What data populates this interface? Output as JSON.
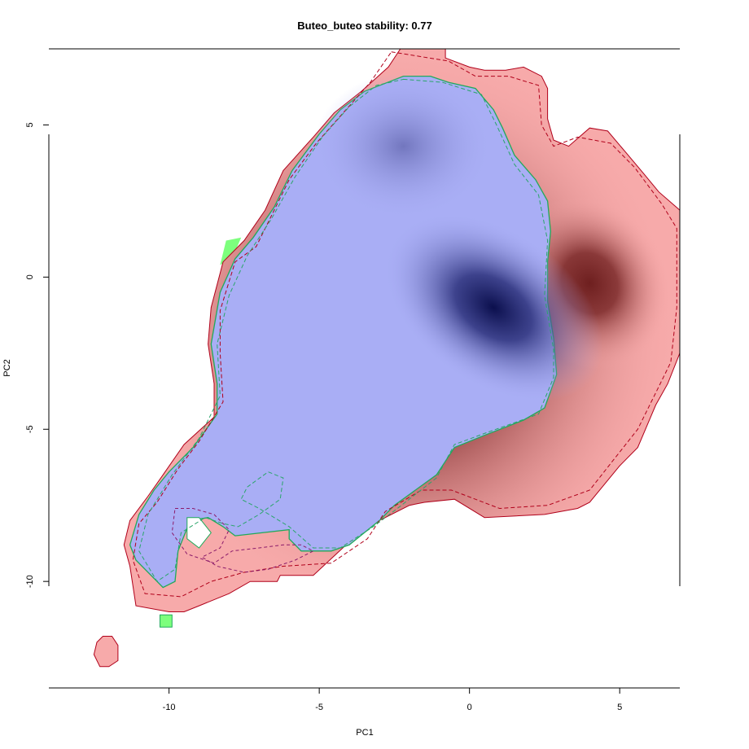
{
  "chart_data": {
    "type": "heatmap",
    "title": "Buteo_buteo stability: 0.77",
    "xlabel": "PC1",
    "ylabel": "PC2",
    "xlim": [
      -14,
      7
    ],
    "ylim": [
      -13.5,
      7.5
    ],
    "x_ticks": [
      {
        "value": -10,
        "label": "-10"
      },
      {
        "value": -5,
        "label": "-5"
      },
      {
        "value": 0,
        "label": "0"
      },
      {
        "value": 5,
        "label": "5"
      }
    ],
    "y_ticks": [
      {
        "value": -10,
        "label": "-10"
      },
      {
        "value": -5,
        "label": "-5"
      },
      {
        "value": 0,
        "label": "0"
      },
      {
        "value": 5,
        "label": "5"
      }
    ],
    "colors": {
      "red_fill": "#f7aaaa",
      "red_peak": "#6e1f1f",
      "blue_fill": "#a9aef5",
      "blue_peak": "#0b0f4d",
      "green_fill": "#7dff7d",
      "red_line": "#b0001a",
      "green_line": "#1faa5a",
      "purple_dash": "#8b1a6a",
      "green_dash": "#2aa56a"
    },
    "density_peaks": {
      "red": {
        "x": 4.0,
        "y": -0.2
      },
      "blue": [
        {
          "x": 0.8,
          "y": -1.0
        },
        {
          "x": -2.2,
          "y": 4.3
        }
      ]
    },
    "regions": {
      "red_outer": [
        [
          -2.3,
          7.5
        ],
        [
          -0.8,
          7.5
        ],
        [
          -0.8,
          7.2
        ],
        [
          0,
          6.9
        ],
        [
          0.5,
          6.8
        ],
        [
          1.2,
          6.8
        ],
        [
          1.8,
          6.9
        ],
        [
          2.4,
          6.6
        ],
        [
          2.6,
          6.2
        ],
        [
          2.6,
          5.2
        ],
        [
          2.8,
          4.5
        ],
        [
          3.3,
          4.3
        ],
        [
          4.0,
          4.9
        ],
        [
          4.6,
          4.8
        ],
        [
          5.2,
          4.1
        ],
        [
          5.8,
          3.4
        ],
        [
          6.3,
          2.8
        ],
        [
          7,
          2.2
        ],
        [
          7,
          -2.5
        ],
        [
          6.6,
          -3.5
        ],
        [
          6.2,
          -4.2
        ],
        [
          5.6,
          -5.6
        ],
        [
          5.0,
          -6.2
        ],
        [
          4.0,
          -7.4
        ],
        [
          3.6,
          -7.6
        ],
        [
          2.5,
          -7.8
        ],
        [
          0.5,
          -7.9
        ],
        [
          -0.5,
          -7.3
        ],
        [
          -1.5,
          -7.4
        ],
        [
          -2.0,
          -7.5
        ],
        [
          -3.2,
          -8.1
        ],
        [
          -4.0,
          -8.7
        ],
        [
          -5.2,
          -9.8
        ],
        [
          -6.3,
          -9.8
        ],
        [
          -6.4,
          -10.0
        ],
        [
          -7.3,
          -10.0
        ],
        [
          -8.0,
          -10.4
        ],
        [
          -9.0,
          -10.8
        ],
        [
          -9.5,
          -11.0
        ],
        [
          -10.0,
          -11.0
        ],
        [
          -11.1,
          -10.8
        ],
        [
          -11.3,
          -9.5
        ],
        [
          -11.5,
          -8.8
        ],
        [
          -11.3,
          -8.0
        ],
        [
          -10.7,
          -7.2
        ],
        [
          -10.2,
          -6.5
        ],
        [
          -9.5,
          -5.5
        ],
        [
          -8.5,
          -4.6
        ],
        [
          -8.5,
          -3.5
        ],
        [
          -8.7,
          -2.2
        ],
        [
          -8.6,
          -1.0
        ],
        [
          -8.2,
          0.5
        ],
        [
          -7.5,
          1.2
        ],
        [
          -6.8,
          2.2
        ],
        [
          -6.2,
          3.5
        ],
        [
          -5.2,
          4.6
        ],
        [
          -4.5,
          5.4
        ],
        [
          -3.6,
          6.1
        ],
        [
          -2.7,
          6.9
        ]
      ],
      "blue_outer": [
        [
          -2.2,
          6.6
        ],
        [
          -1.3,
          6.6
        ],
        [
          -0.7,
          6.4
        ],
        [
          0.2,
          6.2
        ],
        [
          0.8,
          5.5
        ],
        [
          1.1,
          4.9
        ],
        [
          1.5,
          4.0
        ],
        [
          2.2,
          3.2
        ],
        [
          2.6,
          2.5
        ],
        [
          2.7,
          1.5
        ],
        [
          2.6,
          0.5
        ],
        [
          2.6,
          -0.8
        ],
        [
          2.8,
          -2.0
        ],
        [
          2.9,
          -3.2
        ],
        [
          2.5,
          -4.3
        ],
        [
          1.8,
          -4.7
        ],
        [
          0.5,
          -5.2
        ],
        [
          -0.5,
          -5.6
        ],
        [
          -1.1,
          -6.5
        ],
        [
          -2.5,
          -7.5
        ],
        [
          -3.0,
          -8.0
        ],
        [
          -4.0,
          -8.8
        ],
        [
          -4.6,
          -9.0
        ],
        [
          -5.6,
          -9.0
        ],
        [
          -6.0,
          -8.6
        ],
        [
          -6.0,
          -8.3
        ],
        [
          -7.8,
          -8.5
        ],
        [
          -8.2,
          -8.2
        ],
        [
          -8.7,
          -7.9
        ],
        [
          -9.3,
          -8.0
        ],
        [
          -9.7,
          -9.0
        ],
        [
          -9.8,
          -10.0
        ],
        [
          -10.2,
          -10.2
        ],
        [
          -10.6,
          -9.8
        ],
        [
          -11.1,
          -9.3
        ],
        [
          -11.3,
          -8.8
        ],
        [
          -11.0,
          -7.8
        ],
        [
          -10.5,
          -7.0
        ],
        [
          -10.0,
          -6.4
        ],
        [
          -9.2,
          -5.6
        ],
        [
          -8.4,
          -4.5
        ],
        [
          -8.4,
          -3.5
        ],
        [
          -8.6,
          -2.2
        ],
        [
          -8.3,
          -0.5
        ],
        [
          -7.8,
          0.6
        ],
        [
          -7.2,
          1.3
        ],
        [
          -6.5,
          2.3
        ],
        [
          -5.9,
          3.5
        ],
        [
          -5.0,
          4.7
        ],
        [
          -4.3,
          5.5
        ],
        [
          -3.5,
          6.1
        ]
      ],
      "red_hole": [
        [
          -9.4,
          -7.9
        ],
        [
          -9.0,
          -7.9
        ],
        [
          -8.6,
          -8.4
        ],
        [
          -9.0,
          -8.9
        ],
        [
          -9.4,
          -8.6
        ]
      ],
      "red_blob": [
        [
          -12.2,
          -11.8
        ],
        [
          -11.9,
          -11.8
        ],
        [
          -11.7,
          -12.1
        ],
        [
          -11.7,
          -12.6
        ],
        [
          -12.0,
          -12.8
        ],
        [
          -12.3,
          -12.8
        ],
        [
          -12.5,
          -12.4
        ],
        [
          -12.4,
          -12.0
        ]
      ],
      "green_spot": [
        [
          -10.3,
          -11.1
        ],
        [
          -9.9,
          -11.1
        ],
        [
          -9.9,
          -11.5
        ],
        [
          -10.3,
          -11.5
        ]
      ],
      "green_left": [
        [
          -8.1,
          1.2
        ],
        [
          -7.6,
          1.3
        ],
        [
          -7.9,
          0.6
        ],
        [
          -8.3,
          0.4
        ]
      ]
    },
    "dashed_contours": {
      "red_dash": [
        [
          -2.6,
          7.4
        ],
        [
          -0.7,
          7.1
        ],
        [
          0.2,
          6.6
        ],
        [
          1.3,
          6.6
        ],
        [
          2.3,
          6.3
        ],
        [
          2.4,
          5.0
        ],
        [
          2.8,
          4.3
        ],
        [
          3.6,
          4.6
        ],
        [
          4.7,
          4.4
        ],
        [
          5.5,
          3.6
        ],
        [
          6.4,
          2.4
        ],
        [
          6.9,
          1.6
        ],
        [
          6.9,
          -1.0
        ],
        [
          6.7,
          -2.8
        ],
        [
          6.2,
          -3.8
        ],
        [
          5.6,
          -5.0
        ],
        [
          4.8,
          -6.0
        ],
        [
          4.0,
          -7.0
        ],
        [
          2.6,
          -7.5
        ],
        [
          1.0,
          -7.6
        ],
        [
          -0.6,
          -7.0
        ],
        [
          -1.6,
          -7.0
        ],
        [
          -2.8,
          -7.7
        ],
        [
          -3.4,
          -8.6
        ],
        [
          -4.6,
          -9.4
        ],
        [
          -6.2,
          -9.5
        ],
        [
          -7.5,
          -9.7
        ],
        [
          -8.6,
          -10.0
        ],
        [
          -9.6,
          -10.5
        ],
        [
          -10.8,
          -10.4
        ],
        [
          -11.2,
          -9.3
        ],
        [
          -11.0,
          -8.1
        ],
        [
          -10.4,
          -7.4
        ],
        [
          -9.7,
          -6.3
        ],
        [
          -9.0,
          -5.4
        ],
        [
          -8.2,
          -4.1
        ],
        [
          -8.3,
          -2.5
        ],
        [
          -8.3,
          -1.1
        ],
        [
          -7.8,
          0.5
        ],
        [
          -7.1,
          1.0
        ],
        [
          -6.6,
          2.0
        ],
        [
          -6.0,
          3.2
        ],
        [
          -5.1,
          4.4
        ],
        [
          -4.2,
          5.4
        ],
        [
          -3.3,
          6.4
        ]
      ],
      "green_dash": [
        [
          -2.2,
          6.5
        ],
        [
          -0.9,
          6.4
        ],
        [
          0.4,
          6.0
        ],
        [
          0.9,
          5.0
        ],
        [
          1.5,
          3.7
        ],
        [
          2.3,
          2.7
        ],
        [
          2.6,
          1.2
        ],
        [
          2.5,
          -0.6
        ],
        [
          2.8,
          -2.4
        ],
        [
          2.8,
          -3.3
        ],
        [
          2.3,
          -4.5
        ],
        [
          0.6,
          -5.1
        ],
        [
          -0.5,
          -5.5
        ],
        [
          -1.1,
          -6.6
        ],
        [
          -2.4,
          -7.6
        ],
        [
          -3.2,
          -8.2
        ],
        [
          -4.3,
          -8.9
        ],
        [
          -5.2,
          -8.9
        ],
        [
          -6.0,
          -8.2
        ],
        [
          -7.0,
          -7.6
        ],
        [
          -7.6,
          -7.3
        ],
        [
          -7.4,
          -6.9
        ],
        [
          -6.7,
          -6.4
        ],
        [
          -6.2,
          -6.6
        ],
        [
          -6.3,
          -7.3
        ],
        [
          -7.0,
          -7.8
        ],
        [
          -7.7,
          -8.2
        ],
        [
          -8.2,
          -8.1
        ],
        [
          -8.8,
          -7.9
        ],
        [
          -9.6,
          -8.4
        ],
        [
          -9.8,
          -9.6
        ],
        [
          -10.4,
          -10.0
        ],
        [
          -11.0,
          -9.0
        ],
        [
          -10.7,
          -7.8
        ],
        [
          -9.9,
          -6.5
        ],
        [
          -9.0,
          -5.3
        ],
        [
          -8.3,
          -3.9
        ],
        [
          -8.4,
          -2.2
        ],
        [
          -8.0,
          -0.6
        ],
        [
          -7.4,
          0.7
        ],
        [
          -6.6,
          1.9
        ],
        [
          -5.8,
          3.3
        ],
        [
          -4.9,
          4.6
        ],
        [
          -4.0,
          5.6
        ],
        [
          -3.1,
          6.3
        ]
      ],
      "purple_dash": [
        [
          -9.8,
          -7.6
        ],
        [
          -9.2,
          -7.6
        ],
        [
          -8.5,
          -7.8
        ],
        [
          -8.0,
          -8.3
        ],
        [
          -8.3,
          -8.9
        ],
        [
          -8.9,
          -9.2
        ],
        [
          -8.4,
          -9.5
        ],
        [
          -7.5,
          -9.7
        ],
        [
          -6.7,
          -9.6
        ],
        [
          -5.8,
          -9.3
        ],
        [
          -5.2,
          -9.0
        ],
        [
          -5.6,
          -8.8
        ],
        [
          -6.2,
          -8.8
        ],
        [
          -7.0,
          -8.9
        ],
        [
          -7.9,
          -9.0
        ],
        [
          -8.5,
          -9.4
        ],
        [
          -9.4,
          -9.1
        ],
        [
          -9.9,
          -8.4
        ]
      ]
    }
  }
}
